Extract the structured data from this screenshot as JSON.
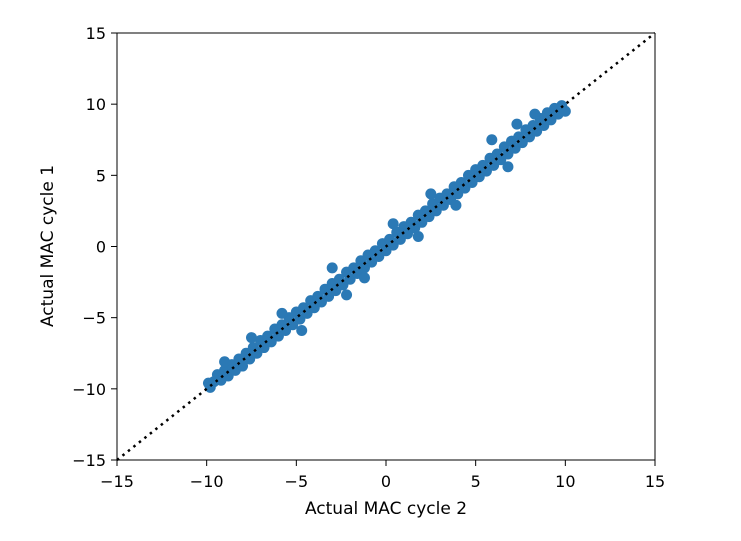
{
  "chart_data": {
    "type": "scatter",
    "title": "",
    "xlabel": "Actual MAC cycle 2",
    "ylabel": "Actual MAC cycle 1",
    "xlim": [
      -15,
      15
    ],
    "ylim": [
      -15,
      15
    ],
    "xticks": [
      -15,
      -10,
      -5,
      0,
      5,
      10,
      15
    ],
    "yticks": [
      -15,
      -10,
      -5,
      0,
      5,
      10,
      15
    ],
    "xtick_labels": [
      "−15",
      "−10",
      "−5",
      "0",
      "5",
      "10",
      "15"
    ],
    "ytick_labels": [
      "−15",
      "−10",
      "−5",
      "0",
      "5",
      "10",
      "15"
    ],
    "grid": false,
    "legend": "none",
    "series": [
      {
        "color": "#2b79b5",
        "points": [
          [
            -9.9,
            -9.6
          ],
          [
            -9.8,
            -9.9
          ],
          [
            -9.6,
            -9.5
          ],
          [
            -9.4,
            -9.0
          ],
          [
            -9.2,
            -9.4
          ],
          [
            -9.0,
            -8.7
          ],
          [
            -8.8,
            -9.1
          ],
          [
            -8.6,
            -8.3
          ],
          [
            -8.4,
            -8.7
          ],
          [
            -8.2,
            -7.9
          ],
          [
            -8.0,
            -8.4
          ],
          [
            -7.8,
            -7.5
          ],
          [
            -7.6,
            -7.9
          ],
          [
            -7.4,
            -7.1
          ],
          [
            -7.2,
            -7.5
          ],
          [
            -7.0,
            -6.6
          ],
          [
            -6.8,
            -7.1
          ],
          [
            -6.6,
            -6.3
          ],
          [
            -6.4,
            -6.7
          ],
          [
            -6.2,
            -5.8
          ],
          [
            -6.0,
            -6.3
          ],
          [
            -5.8,
            -5.5
          ],
          [
            -5.6,
            -5.9
          ],
          [
            -5.4,
            -5.0
          ],
          [
            -5.2,
            -5.5
          ],
          [
            -5.0,
            -4.6
          ],
          [
            -4.8,
            -5.1
          ],
          [
            -4.6,
            -4.3
          ],
          [
            -4.4,
            -4.7
          ],
          [
            -4.2,
            -3.8
          ],
          [
            -4.0,
            -4.3
          ],
          [
            -3.8,
            -3.5
          ],
          [
            -3.6,
            -3.9
          ],
          [
            -3.4,
            -3.0
          ],
          [
            -3.2,
            -3.5
          ],
          [
            -3.0,
            -2.6
          ],
          [
            -2.8,
            -3.1
          ],
          [
            -2.6,
            -2.3
          ],
          [
            -2.4,
            -2.7
          ],
          [
            -2.2,
            -1.8
          ],
          [
            -2.0,
            -2.3
          ],
          [
            -1.8,
            -1.5
          ],
          [
            -1.6,
            -1.9
          ],
          [
            -1.4,
            -1.0
          ],
          [
            -1.2,
            -1.5
          ],
          [
            -1.0,
            -0.6
          ],
          [
            -0.8,
            -1.1
          ],
          [
            -0.6,
            -0.3
          ],
          [
            -0.4,
            -0.7
          ],
          [
            -0.2,
            0.2
          ],
          [
            0.0,
            -0.3
          ],
          [
            0.2,
            0.5
          ],
          [
            0.4,
            0.1
          ],
          [
            0.6,
            1.0
          ],
          [
            0.8,
            0.5
          ],
          [
            1.0,
            1.4
          ],
          [
            1.2,
            0.9
          ],
          [
            1.4,
            1.7
          ],
          [
            1.6,
            1.3
          ],
          [
            1.8,
            2.2
          ],
          [
            2.0,
            1.7
          ],
          [
            2.2,
            2.5
          ],
          [
            2.4,
            2.1
          ],
          [
            2.6,
            3.0
          ],
          [
            2.8,
            2.5
          ],
          [
            3.0,
            3.4
          ],
          [
            3.2,
            2.9
          ],
          [
            3.4,
            3.7
          ],
          [
            3.6,
            3.3
          ],
          [
            3.8,
            4.2
          ],
          [
            4.0,
            3.7
          ],
          [
            4.2,
            4.5
          ],
          [
            4.4,
            4.1
          ],
          [
            4.6,
            5.0
          ],
          [
            4.8,
            4.5
          ],
          [
            5.0,
            5.4
          ],
          [
            5.2,
            4.9
          ],
          [
            5.4,
            5.7
          ],
          [
            5.6,
            5.3
          ],
          [
            5.8,
            6.2
          ],
          [
            6.0,
            5.7
          ],
          [
            6.2,
            6.5
          ],
          [
            6.4,
            6.1
          ],
          [
            6.6,
            7.0
          ],
          [
            6.8,
            6.5
          ],
          [
            7.0,
            7.4
          ],
          [
            7.2,
            6.9
          ],
          [
            7.4,
            7.7
          ],
          [
            7.6,
            7.3
          ],
          [
            7.8,
            8.2
          ],
          [
            8.0,
            7.7
          ],
          [
            8.2,
            8.5
          ],
          [
            8.4,
            8.1
          ],
          [
            8.6,
            9.0
          ],
          [
            8.8,
            8.5
          ],
          [
            9.0,
            9.4
          ],
          [
            9.2,
            8.9
          ],
          [
            9.4,
            9.7
          ],
          [
            9.6,
            9.3
          ],
          [
            9.8,
            9.9
          ],
          [
            10.0,
            9.5
          ],
          [
            -3.0,
            -1.5
          ],
          [
            -2.2,
            -3.4
          ],
          [
            1.8,
            0.7
          ],
          [
            2.5,
            3.7
          ],
          [
            -5.8,
            -4.7
          ],
          [
            5.9,
            7.5
          ],
          [
            6.8,
            5.6
          ],
          [
            -7.5,
            -6.4
          ],
          [
            -1.2,
            -2.2
          ],
          [
            3.9,
            2.9
          ],
          [
            0.4,
            1.6
          ],
          [
            -9.0,
            -8.1
          ],
          [
            8.3,
            9.3
          ],
          [
            -4.7,
            -5.9
          ],
          [
            7.3,
            8.6
          ]
        ]
      }
    ],
    "reference_line": {
      "style": "dotted",
      "color": "#000000",
      "from": [
        -15,
        -15
      ],
      "to": [
        15,
        15
      ]
    }
  }
}
